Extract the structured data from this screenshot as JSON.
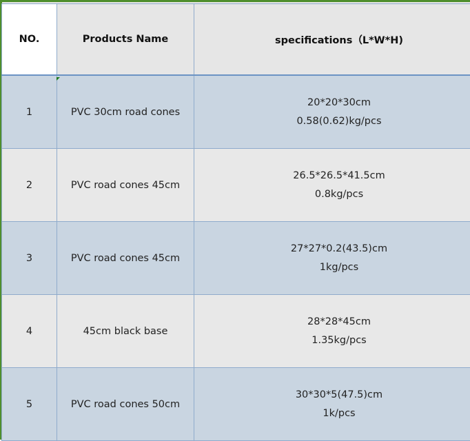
{
  "table": {
    "headers": [
      "NO.",
      "Products Name",
      "specifications（L*W*H)"
    ],
    "rows": [
      {
        "no": "1",
        "name": "PVC 30cm road cones",
        "spec": [
          "20*20*30cm",
          "0.58(0.62)kg/pcs"
        ]
      },
      {
        "no": "2",
        "name": "PVC road cones 45cm",
        "spec": [
          "26.5*26.5*41.5cm",
          "0.8kg/pcs"
        ]
      },
      {
        "no": "3",
        "name": "PVC road cones 45cm",
        "spec": [
          "27*27*0.2(43.5)cm",
          "1kg/pcs"
        ]
      },
      {
        "no": "4",
        "name": "45cm black base",
        "spec": [
          "28*28*45cm",
          "1.35kg/pcs"
        ]
      },
      {
        "no": "5",
        "name": "PVC road cones 50cm",
        "spec": [
          "30*30*5(47.5)cm",
          "1k/pcs"
        ]
      }
    ]
  },
  "colors": {
    "selection_border": "#4e8e2c",
    "row_alt_blue": "#c9d5e1",
    "row_alt_gray": "#e8e8e8"
  }
}
